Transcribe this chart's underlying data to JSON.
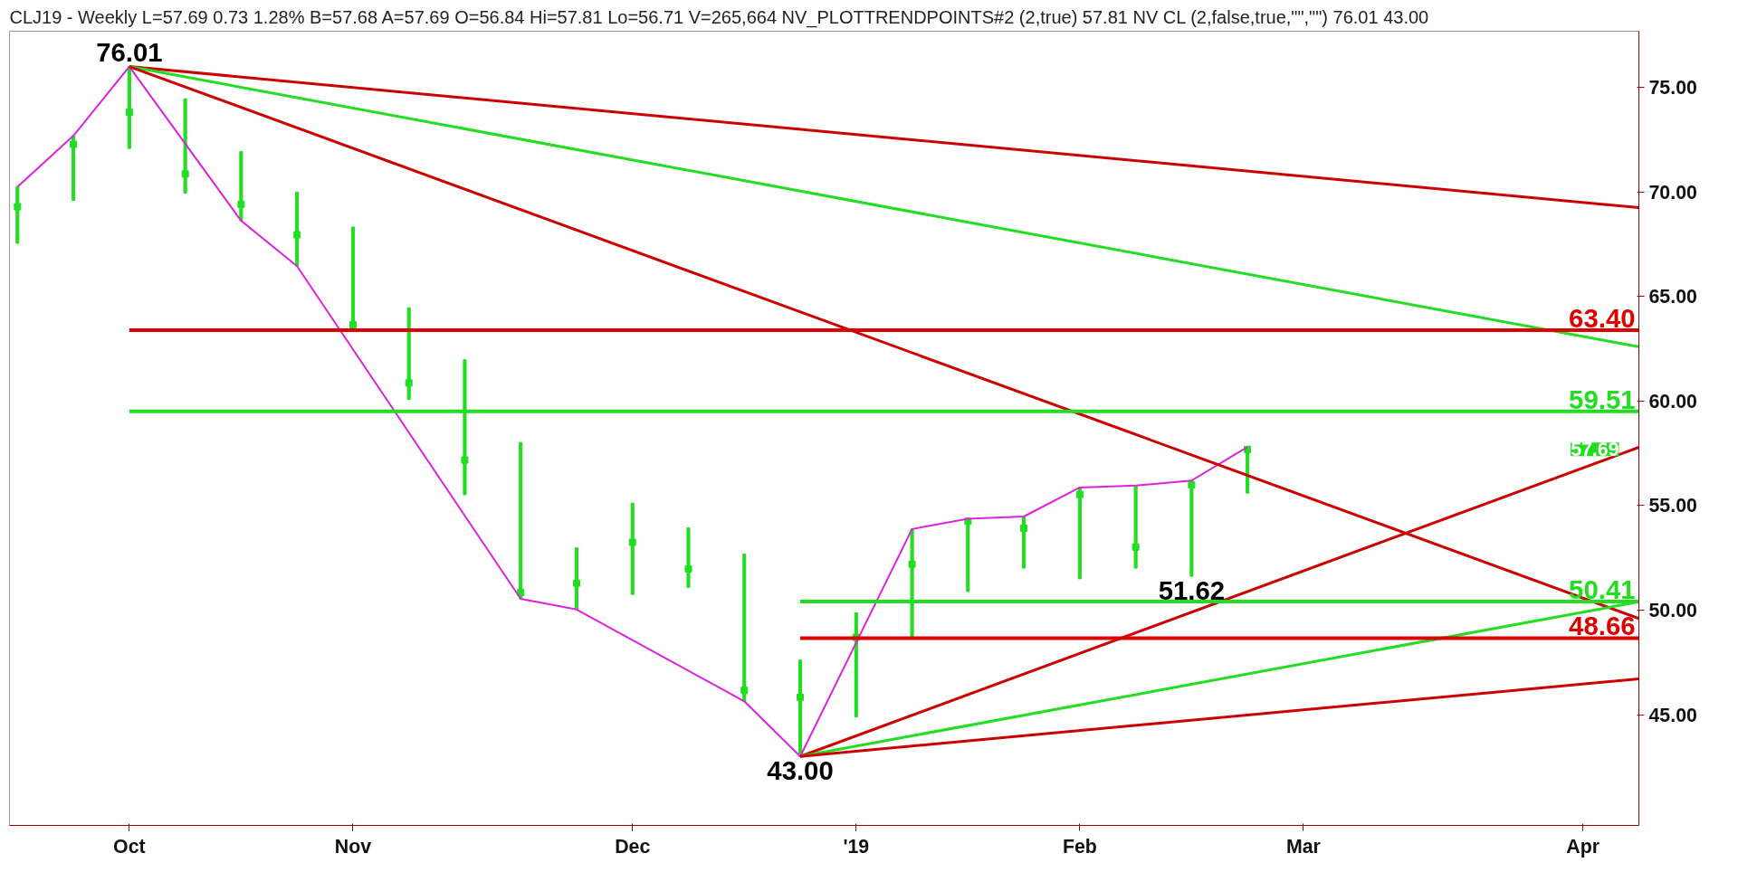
{
  "chart_data": {
    "type": "bar",
    "title": "CLJ19 - Weekly  L=57.69  0.73  1.28%  B=57.68  A=57.69  O=56.84  Hi=57.81  Lo=56.71  V=265,664  NV_PLOTTRENDPOINTS#2 (2,true)  57.81  NV CL (2,false,true,\"\",\"\")  76.01  43.00",
    "xlim": [
      "2018-09-20",
      "2019-04-12"
    ],
    "ylim": [
      39.7,
      77.7
    ],
    "xticks": [
      {
        "value": "2018-10-05",
        "label": "Oct"
      },
      {
        "value": "2018-11-02",
        "label": "Nov"
      },
      {
        "value": "2018-12-07",
        "label": "Dec"
      },
      {
        "value": "2019-01-04",
        "label": "'19"
      },
      {
        "value": "2019-02-01",
        "label": "Feb"
      },
      {
        "value": "2019-03-01",
        "label": "Mar"
      },
      {
        "value": "2019-04-05",
        "label": "Apr"
      }
    ],
    "yticks": [
      {
        "value": 45,
        "label": "45.00"
      },
      {
        "value": 50,
        "label": "50.00"
      },
      {
        "value": 55,
        "label": "55.00"
      },
      {
        "value": 60,
        "label": "60.00"
      },
      {
        "value": 65,
        "label": "65.00"
      },
      {
        "value": 70,
        "label": "70.00"
      },
      {
        "value": 75,
        "label": "75.00"
      }
    ],
    "series": [
      {
        "color": "#22dd22",
        "x": [
          "2018-09-21",
          "2018-09-28",
          "2018-10-05",
          "2018-10-12",
          "2018-10-19",
          "2018-10-26",
          "2018-11-02",
          "2018-11-09",
          "2018-11-16",
          "2018-11-23",
          "2018-11-30",
          "2018-12-07",
          "2018-12-14",
          "2018-12-21",
          "2018-12-28",
          "2019-01-04",
          "2019-01-11",
          "2019-01-18",
          "2019-01-25",
          "2019-02-01",
          "2019-02-08",
          "2019-02-15",
          "2019-02-22"
        ],
        "base": [
          67.55,
          69.6,
          72.09,
          69.95,
          68.63,
          66.46,
          63.41,
          60.09,
          55.52,
          50.54,
          50.03,
          50.75,
          51.09,
          45.64,
          43.0,
          44.89,
          48.69,
          50.89,
          52.01,
          51.5,
          52.01,
          51.62,
          55.6
        ],
        "values": [
          2.71,
          3.1,
          3.92,
          4.52,
          3.31,
          3.54,
          4.92,
          4.38,
          6.46,
          7.48,
          2.95,
          4.37,
          2.85,
          7.04,
          4.61,
          4.98,
          5.19,
          3.48,
          2.47,
          4.37,
          3.95,
          4.58,
          2.21
        ]
      },
      {
        "type": "scatter",
        "marker": "square",
        "color": "#22dd22",
        "x": [
          "2018-09-21",
          "2018-09-28",
          "2018-10-05",
          "2018-10-12",
          "2018-10-19",
          "2018-10-26",
          "2018-11-02",
          "2018-11-09",
          "2018-11-16",
          "2018-11-23",
          "2018-11-30",
          "2018-12-07",
          "2018-12-14",
          "2018-12-21",
          "2018-12-28",
          "2019-01-04",
          "2019-01-11",
          "2019-01-18",
          "2019-01-25",
          "2019-02-01",
          "2019-02-08",
          "2019-02-15",
          "2019-02-22"
        ],
        "values": [
          69.3,
          72.29,
          73.82,
          70.87,
          69.42,
          67.96,
          63.65,
          60.87,
          57.18,
          50.84,
          51.29,
          53.25,
          51.97,
          46.17,
          45.83,
          48.7,
          52.2,
          54.25,
          53.92,
          55.53,
          53.02,
          56.0,
          57.69
        ]
      },
      {
        "type": "line",
        "color": "#dd22dd",
        "x": [
          "2018-09-21",
          "2018-09-28",
          "2018-10-05",
          "2018-10-19",
          "2018-10-26",
          "2018-11-23",
          "2018-11-30",
          "2018-12-21",
          "2018-12-28",
          "2019-01-11",
          "2019-01-18",
          "2019-01-25",
          "2019-02-01",
          "2019-02-08",
          "2019-02-15",
          "2019-02-22"
        ],
        "values": [
          70.26,
          72.7,
          76.01,
          68.63,
          66.46,
          50.54,
          50.03,
          45.64,
          43.0,
          53.88,
          54.37,
          54.48,
          55.87,
          55.96,
          56.2,
          57.81
        ]
      },
      {
        "type": "line",
        "color": "#cc0000",
        "x": [
          "2018-10-05",
          "2019-04-12"
        ],
        "values": [
          76.01,
          69.26
        ]
      },
      {
        "type": "line",
        "color": "#22dd22",
        "x": [
          "2018-10-05",
          "2019-04-12"
        ],
        "values": [
          76.01,
          62.6
        ]
      },
      {
        "type": "line",
        "color": "#cc0000",
        "x": [
          "2018-10-05",
          "2019-04-12"
        ],
        "values": [
          76.01,
          49.6
        ]
      },
      {
        "type": "line",
        "color": "#cc0000",
        "x": [
          "2018-12-28",
          "2019-04-12"
        ],
        "values": [
          43.0,
          57.79
        ]
      },
      {
        "type": "line",
        "color": "#22dd22",
        "x": [
          "2018-12-28",
          "2019-04-12"
        ],
        "values": [
          43.0,
          50.4
        ]
      },
      {
        "type": "line",
        "color": "#cc0000",
        "x": [
          "2018-12-28",
          "2019-04-12"
        ],
        "values": [
          43.0,
          46.71
        ]
      },
      {
        "type": "line",
        "name": "63.40",
        "color": "#dd0000",
        "x": [
          "2018-10-05",
          "2019-04-12"
        ],
        "values": [
          63.4,
          63.4
        ]
      },
      {
        "type": "line",
        "name": "59.51",
        "color": "#22dd22",
        "x": [
          "2018-10-05",
          "2019-04-12"
        ],
        "values": [
          59.51,
          59.51
        ]
      },
      {
        "type": "line",
        "name": "50.41",
        "color": "#22dd22",
        "x": [
          "2018-12-28",
          "2019-04-12"
        ],
        "values": [
          50.41,
          50.41
        ]
      },
      {
        "type": "line",
        "name": "48.66",
        "color": "#dd0000",
        "x": [
          "2018-12-28",
          "2019-04-12"
        ],
        "values": [
          48.66,
          48.66
        ]
      }
    ],
    "annotations": [
      {
        "text": "76.01",
        "x": "2018-10-05",
        "y": 76.01
      },
      {
        "text": "43.00",
        "x": "2018-12-28",
        "y": 43.0
      },
      {
        "text": "51.62",
        "x": "2019-02-15",
        "y": 51.62
      },
      {
        "text": "57.69",
        "x": "2019-04-12",
        "y": 57.69
      }
    ]
  }
}
